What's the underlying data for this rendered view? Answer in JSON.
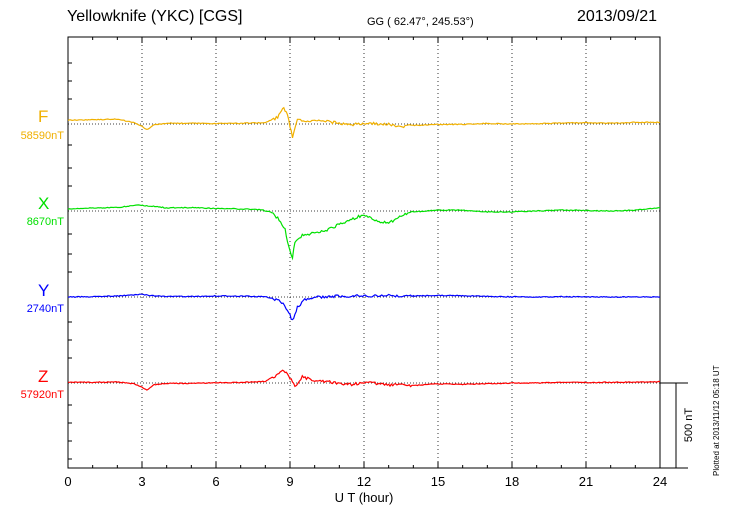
{
  "header": {
    "station": "Yellowknife (YKC)  [CGS]",
    "coords": "GG ( 62.47°, 245.53°)",
    "date": "2013/09/21"
  },
  "footer_note": "Plotted at 2013/11/12 05:18 UT",
  "colors": {
    "F": "#f0b000",
    "X": "#00e000",
    "Y": "#0000ff",
    "Z": "#ff0000"
  },
  "chart_data": {
    "type": "line",
    "xlabel": "U T (hour)",
    "xlim": [
      0,
      24
    ],
    "xticks": [
      "0",
      "3",
      "6",
      "9",
      "12",
      "15",
      "18",
      "21",
      "24"
    ],
    "scale_bar": {
      "label": "500 nT",
      "value_nT": 500
    },
    "series": [
      {
        "name": "F",
        "baseline_label": "58590nT",
        "baseline_nT": 58590,
        "deviation_nT": [
          [
            0,
            23
          ],
          [
            1,
            25
          ],
          [
            2,
            28
          ],
          [
            2.7,
            8
          ],
          [
            3,
            -15
          ],
          [
            3.2,
            -32
          ],
          [
            3.5,
            -5
          ],
          [
            4,
            5
          ],
          [
            5,
            4
          ],
          [
            6,
            3
          ],
          [
            7,
            4
          ],
          [
            8,
            8
          ],
          [
            8.5,
            40
          ],
          [
            8.75,
            95
          ],
          [
            8.9,
            55
          ],
          [
            9.1,
            -80
          ],
          [
            9.3,
            35
          ],
          [
            9.6,
            12
          ],
          [
            10,
            18
          ],
          [
            10.5,
            15
          ],
          [
            11,
            4
          ],
          [
            11.5,
            -5
          ],
          [
            12,
            5
          ],
          [
            13,
            -2
          ],
          [
            13.5,
            -18
          ],
          [
            14,
            -8
          ],
          [
            15,
            -3
          ],
          [
            16,
            -2
          ],
          [
            17,
            4
          ],
          [
            18,
            0
          ],
          [
            19,
            2
          ],
          [
            20,
            5
          ],
          [
            21,
            8
          ],
          [
            22,
            5
          ],
          [
            23,
            10
          ],
          [
            24,
            10
          ]
        ]
      },
      {
        "name": "X",
        "baseline_label": "8670nT",
        "baseline_nT": 8670,
        "deviation_nT": [
          [
            0,
            12
          ],
          [
            1,
            18
          ],
          [
            2,
            20
          ],
          [
            2.8,
            35
          ],
          [
            3.3,
            30
          ],
          [
            4,
            18
          ],
          [
            5,
            20
          ],
          [
            6,
            15
          ],
          [
            7,
            12
          ],
          [
            7.8,
            8
          ],
          [
            8.2,
            -5
          ],
          [
            8.5,
            -40
          ],
          [
            8.8,
            -110
          ],
          [
            9.0,
            -240
          ],
          [
            9.1,
            -270
          ],
          [
            9.2,
            -190
          ],
          [
            9.5,
            -140
          ],
          [
            10,
            -130
          ],
          [
            10.5,
            -110
          ],
          [
            11,
            -80
          ],
          [
            11.5,
            -50
          ],
          [
            12,
            -20
          ],
          [
            12.5,
            -60
          ],
          [
            13,
            -70
          ],
          [
            13.5,
            -30
          ],
          [
            14,
            -5
          ],
          [
            15,
            5
          ],
          [
            16,
            5
          ],
          [
            17,
            -5
          ],
          [
            18,
            -5
          ],
          [
            19,
            0
          ],
          [
            20,
            5
          ],
          [
            21,
            3
          ],
          [
            22,
            0
          ],
          [
            23,
            5
          ],
          [
            24,
            20
          ]
        ]
      },
      {
        "name": "Y",
        "baseline_label": "2740nT",
        "baseline_nT": 2740,
        "deviation_nT": [
          [
            0,
            0
          ],
          [
            1,
            2
          ],
          [
            2,
            6
          ],
          [
            3,
            15
          ],
          [
            3.4,
            8
          ],
          [
            4,
            4
          ],
          [
            5,
            3
          ],
          [
            6,
            6
          ],
          [
            7,
            5
          ],
          [
            8,
            2
          ],
          [
            8.6,
            -20
          ],
          [
            8.9,
            -75
          ],
          [
            9.1,
            -140
          ],
          [
            9.3,
            -60
          ],
          [
            9.6,
            -15
          ],
          [
            10,
            0
          ],
          [
            11,
            5
          ],
          [
            12,
            6
          ],
          [
            13,
            8
          ],
          [
            14,
            6
          ],
          [
            15,
            10
          ],
          [
            16,
            8
          ],
          [
            17,
            4
          ],
          [
            18,
            1
          ],
          [
            19,
            0
          ],
          [
            20,
            2
          ],
          [
            21,
            1
          ],
          [
            22,
            0
          ],
          [
            23,
            0
          ],
          [
            24,
            0
          ]
        ]
      },
      {
        "name": "Z",
        "baseline_label": "57920nT",
        "baseline_nT": 57920,
        "deviation_nT": [
          [
            0,
            5
          ],
          [
            1,
            4
          ],
          [
            2,
            6
          ],
          [
            2.7,
            -5
          ],
          [
            3,
            -25
          ],
          [
            3.2,
            -40
          ],
          [
            3.5,
            -10
          ],
          [
            4,
            -2
          ],
          [
            5,
            -3
          ],
          [
            6,
            2
          ],
          [
            7,
            3
          ],
          [
            8,
            10
          ],
          [
            8.5,
            50
          ],
          [
            8.75,
            75
          ],
          [
            9.0,
            30
          ],
          [
            9.2,
            -20
          ],
          [
            9.5,
            35
          ],
          [
            10,
            15
          ],
          [
            10.5,
            10
          ],
          [
            11,
            -5
          ],
          [
            11.5,
            -10
          ],
          [
            12,
            5
          ],
          [
            13,
            -10
          ],
          [
            14,
            -15
          ],
          [
            15,
            -5
          ],
          [
            16,
            -8
          ],
          [
            17,
            -4
          ],
          [
            18,
            0
          ],
          [
            19,
            0
          ],
          [
            20,
            3
          ],
          [
            21,
            3
          ],
          [
            22,
            4
          ],
          [
            23,
            5
          ],
          [
            24,
            8
          ]
        ]
      }
    ]
  }
}
